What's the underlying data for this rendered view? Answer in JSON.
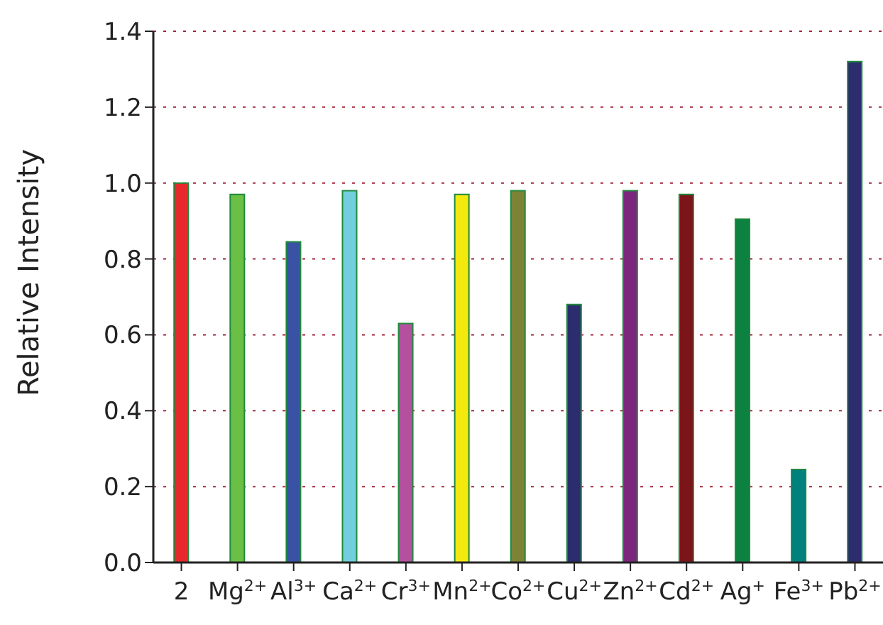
{
  "chart_data": {
    "type": "bar",
    "ylabel": "Relative Intensity",
    "categories": [
      "2",
      "Mg$^{2+}$",
      "Al$^{3+}$",
      "Ca$^{2+}$",
      "Cr$^{3+}$",
      "Mn$^{2+}$",
      "Co$^{2+}$",
      "Cu$^{2+}$",
      "Zn$^{2+}$",
      "Cd$^{2+}$",
      "Ag$^{+}$",
      "Fe$^{3+}$",
      "Pb$^{2+}$"
    ],
    "values": [
      1.0,
      0.97,
      0.845,
      0.98,
      0.63,
      0.97,
      0.98,
      0.68,
      0.98,
      0.97,
      0.905,
      0.245,
      1.32
    ],
    "colors": [
      "#e8292b",
      "#6cbf45",
      "#3a52a3",
      "#72cddc",
      "#b4519e",
      "#f4e90f",
      "#7d8336",
      "#2c2d6e",
      "#7b287c",
      "#7c1519",
      "#0c8140",
      "#00817e",
      "#2c2d6e"
    ],
    "ylim": [
      0,
      1.4
    ],
    "yticks": [
      {
        "value": 0,
        "label": "0.0"
      },
      0.2,
      0.4,
      0.6,
      0.8,
      {
        "value": 1,
        "label": "1.0"
      },
      1.2,
      1.4
    ],
    "grid": "y",
    "legend": false
  }
}
